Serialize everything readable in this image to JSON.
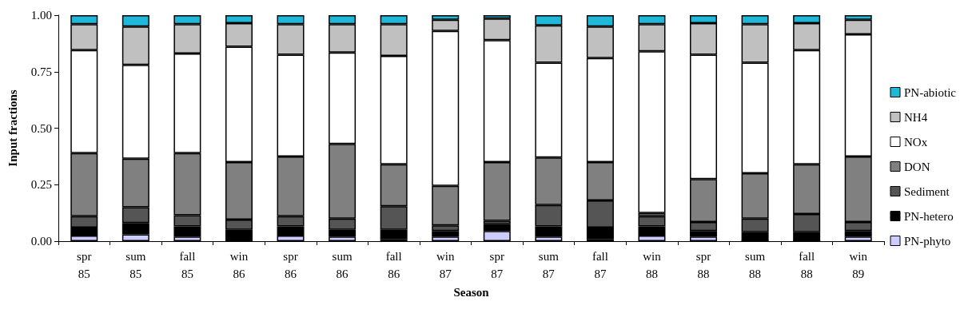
{
  "chart_data": {
    "type": "bar",
    "stacked": true,
    "xlabel": "Season",
    "ylabel": "Input fractions",
    "categories": [
      "spr 85",
      "sum 85",
      "fall 85",
      "win 86",
      "spr 86",
      "sum 86",
      "fall 86",
      "win 87",
      "spr 87",
      "sum 87",
      "fall 87",
      "win 88",
      "spr 88",
      "sum 88",
      "fall 88",
      "win 89"
    ],
    "ylim": [
      0,
      1
    ],
    "yticks": [
      {
        "value": 0,
        "label": "0.00"
      },
      {
        "value": 0.25,
        "label": "0.25"
      },
      {
        "value": 0.5,
        "label": "0.50"
      },
      {
        "value": 0.75,
        "label": "0.75"
      },
      {
        "value": 1,
        "label": "1.00"
      }
    ],
    "grid": false,
    "legend": "right",
    "series": [
      {
        "name": "PN-phyto",
        "color": "#ccccff",
        "values": [
          0.025,
          0.03,
          0.02,
          0,
          0.025,
          0.02,
          0.01,
          0.02,
          0.045,
          0.02,
          0.01,
          0.025,
          0.02,
          0,
          0,
          0.02
        ]
      },
      {
        "name": "PN-hetero",
        "color": "#000000",
        "values": [
          0.035,
          0.05,
          0.045,
          0.05,
          0.04,
          0.03,
          0.04,
          0.025,
          0.03,
          0.045,
          0.05,
          0.04,
          0.025,
          0.04,
          0.04,
          0.025
        ]
      },
      {
        "name": "Sediment",
        "color": "#555555",
        "values": [
          0.05,
          0.07,
          0.05,
          0.045,
          0.045,
          0.05,
          0.105,
          0.025,
          0.015,
          0.095,
          0.12,
          0.045,
          0.04,
          0.06,
          0.08,
          0.04
        ]
      },
      {
        "name": "DON",
        "color": "#808080",
        "values": [
          0.28,
          0.215,
          0.275,
          0.255,
          0.265,
          0.33,
          0.185,
          0.175,
          0.26,
          0.21,
          0.17,
          0.015,
          0.19,
          0.2,
          0.22,
          0.29
        ]
      },
      {
        "name": "NOx",
        "color": "#ffffff",
        "values": [
          0.455,
          0.415,
          0.44,
          0.51,
          0.45,
          0.405,
          0.48,
          0.685,
          0.54,
          0.42,
          0.46,
          0.715,
          0.55,
          0.49,
          0.505,
          0.54
        ]
      },
      {
        "name": "NH4",
        "color": "#c0c0c0",
        "values": [
          0.115,
          0.17,
          0.13,
          0.105,
          0.135,
          0.125,
          0.14,
          0.05,
          0.095,
          0.165,
          0.14,
          0.12,
          0.14,
          0.17,
          0.12,
          0.065
        ]
      },
      {
        "name": "PN-abiotic",
        "color": "#1fb8d8",
        "values": [
          0.04,
          0.05,
          0.04,
          0.035,
          0.04,
          0.04,
          0.04,
          0.02,
          0.015,
          0.045,
          0.05,
          0.04,
          0.035,
          0.04,
          0.035,
          0.02
        ]
      }
    ]
  }
}
